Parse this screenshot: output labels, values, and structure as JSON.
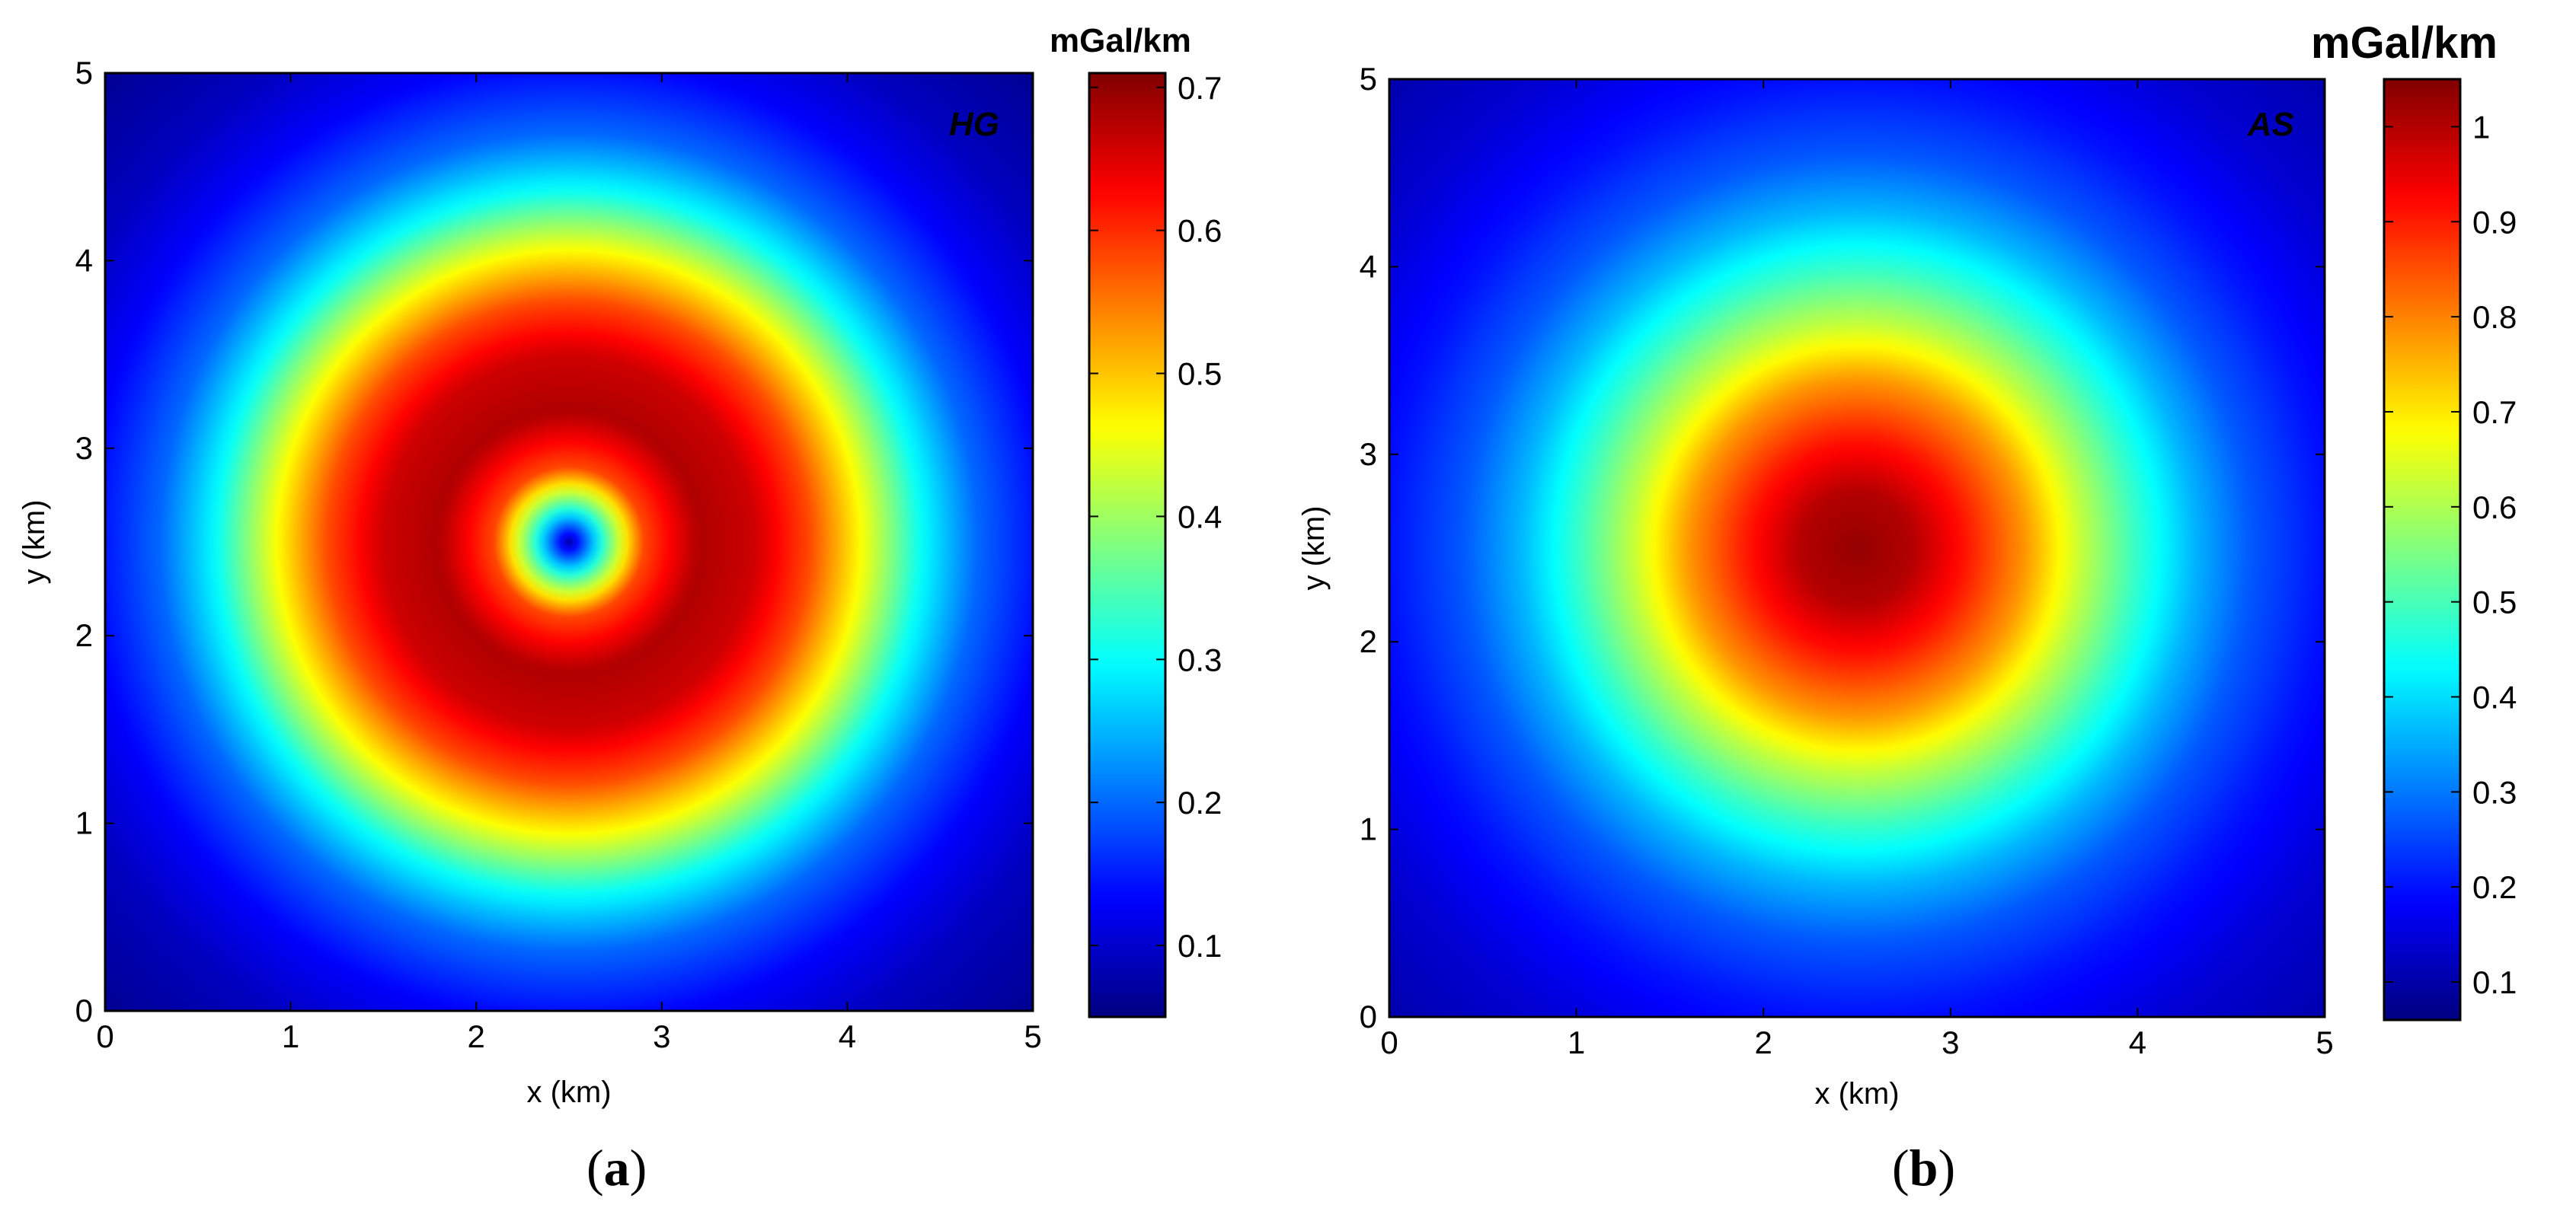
{
  "chart_data": [
    {
      "type": "heatmap",
      "panel_label": "a",
      "inset_label": "HG",
      "colorbar_label": "mGal/km",
      "xlabel": "x (km)",
      "ylabel": "y (km)",
      "xlim": [
        0,
        5
      ],
      "ylim": [
        0,
        5
      ],
      "xticks": [
        "0",
        "1",
        "2",
        "3",
        "4",
        "5"
      ],
      "yticks": [
        "0",
        "1",
        "2",
        "3",
        "4",
        "5"
      ],
      "center": [
        2.5,
        2.5
      ],
      "colorbar_range": [
        0.05,
        0.71
      ],
      "colorbar_ticks": [
        "0.1",
        "0.2",
        "0.3",
        "0.4",
        "0.5",
        "0.6",
        "0.7"
      ],
      "radial_profile": [
        {
          "r": 0.0,
          "value": 0.08
        },
        {
          "r": 0.2,
          "value": 0.35
        },
        {
          "r": 0.4,
          "value": 0.58
        },
        {
          "r": 0.7,
          "value": 0.68
        },
        {
          "r": 1.0,
          "value": 0.66
        },
        {
          "r": 1.3,
          "value": 0.58
        },
        {
          "r": 1.6,
          "value": 0.45
        },
        {
          "r": 1.9,
          "value": 0.3
        },
        {
          "r": 2.2,
          "value": 0.2
        },
        {
          "r": 2.6,
          "value": 0.13
        },
        {
          "r": 3.0,
          "value": 0.09
        },
        {
          "r": 3.6,
          "value": 0.06
        }
      ]
    },
    {
      "type": "heatmap",
      "panel_label": "b",
      "inset_label": "AS",
      "colorbar_label": "mGal/km",
      "xlabel": "x (km)",
      "ylabel": "y (km)",
      "xlim": [
        0,
        5
      ],
      "ylim": [
        0,
        5
      ],
      "xticks": [
        "0",
        "1",
        "2",
        "3",
        "4",
        "5"
      ],
      "yticks": [
        "0",
        "1",
        "2",
        "3",
        "4",
        "5"
      ],
      "center": [
        2.5,
        2.5
      ],
      "colorbar_range": [
        0.06,
        1.05
      ],
      "colorbar_ticks": [
        "0.1",
        "0.2",
        "0.3",
        "0.4",
        "0.5",
        "0.6",
        "0.7",
        "0.8",
        "0.9",
        "1"
      ],
      "radial_profile": [
        {
          "r": 0.0,
          "value": 1.03
        },
        {
          "r": 0.3,
          "value": 1.0
        },
        {
          "r": 0.6,
          "value": 0.9
        },
        {
          "r": 0.9,
          "value": 0.78
        },
        {
          "r": 1.2,
          "value": 0.62
        },
        {
          "r": 1.5,
          "value": 0.48
        },
        {
          "r": 1.8,
          "value": 0.36
        },
        {
          "r": 2.1,
          "value": 0.27
        },
        {
          "r": 2.5,
          "value": 0.2
        },
        {
          "r": 3.0,
          "value": 0.14
        },
        {
          "r": 3.6,
          "value": 0.1
        }
      ]
    }
  ]
}
